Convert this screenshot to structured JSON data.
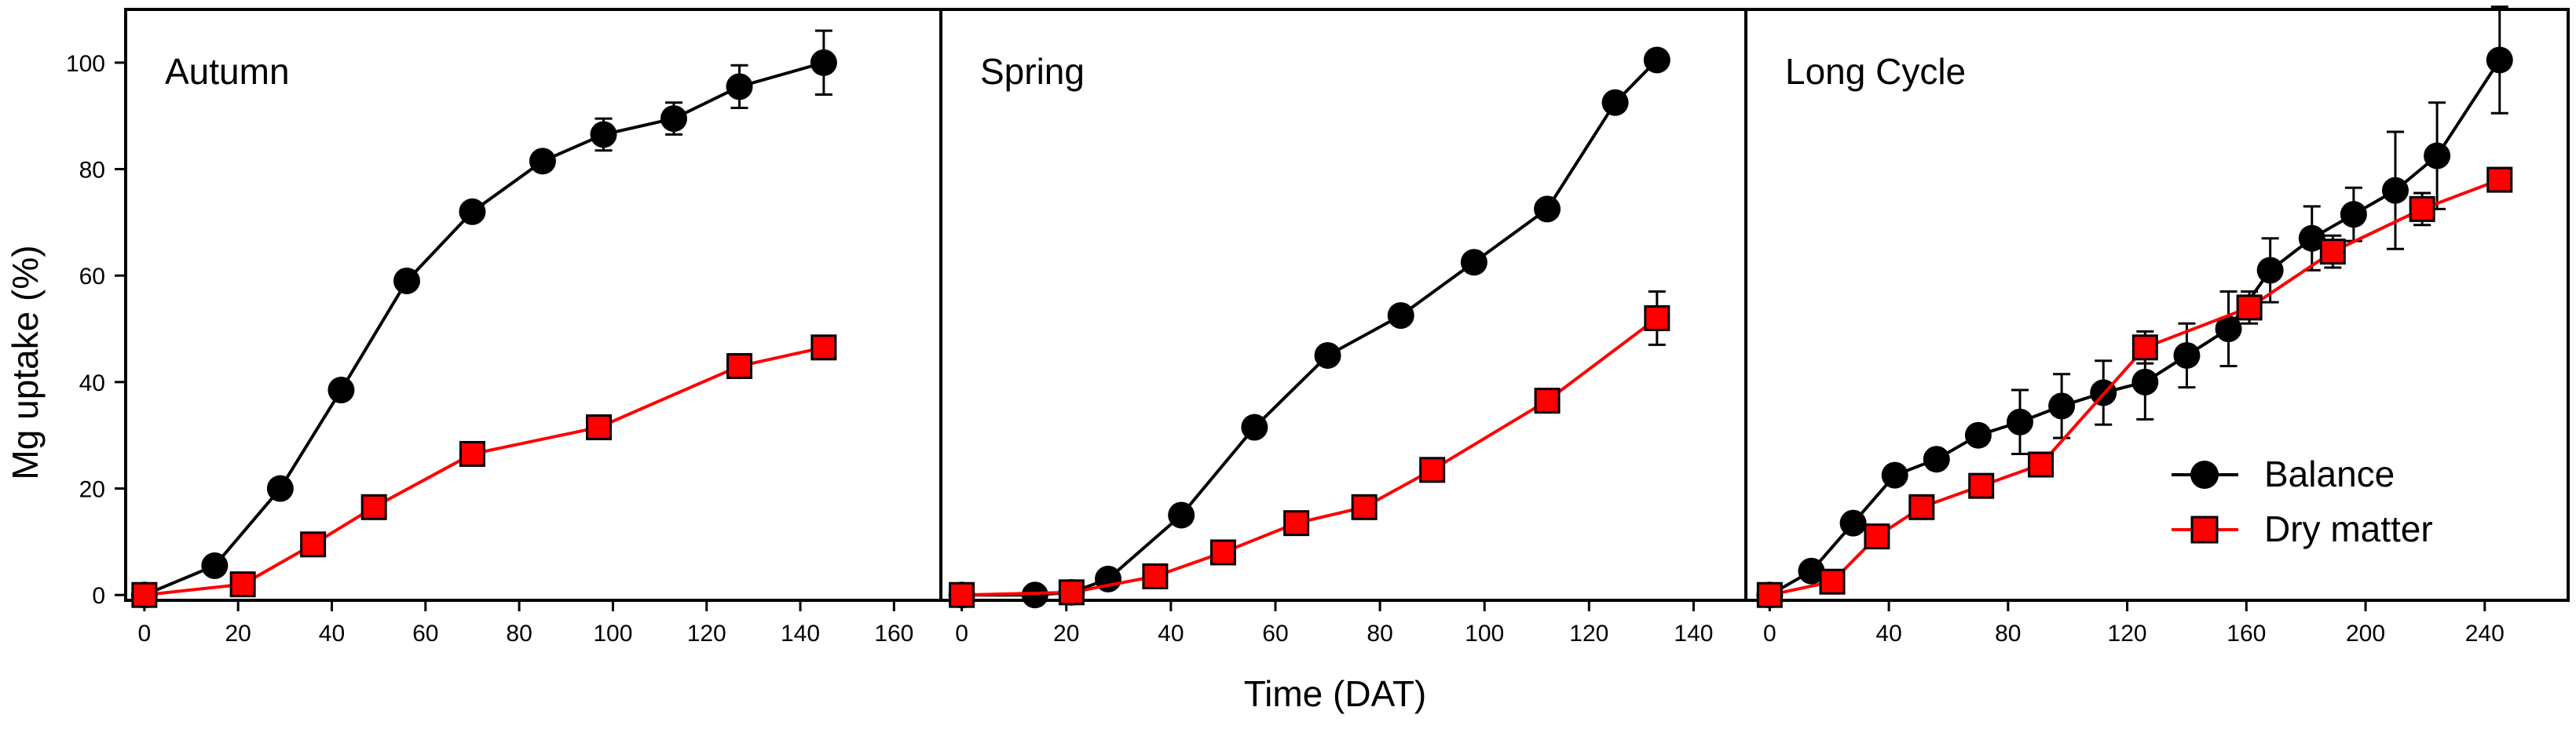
{
  "chart_data": {
    "type": "line",
    "ylabel": "Mg uptake (%)",
    "xlabel": "Time (DAT)",
    "yticks": [
      0,
      20,
      40,
      60,
      80,
      100
    ],
    "legend": {
      "placement": "bottom-right of third panel",
      "entries": [
        "Balance",
        "Dry matter"
      ]
    },
    "colors": {
      "balance_line": "#000000",
      "balance_marker": "#000000",
      "dry_line": "#ff0000",
      "dry_marker": "#ff0000"
    },
    "panels": [
      {
        "title": "Autumn",
        "xlim": [
          -4,
          170
        ],
        "ylim": [
          -1,
          110
        ],
        "xticks": [
          0,
          20,
          40,
          60,
          80,
          100,
          120,
          140,
          160
        ],
        "series": [
          {
            "name": "Balance",
            "x": [
              0,
              15,
              29,
              42,
              56,
              70,
              85,
              98,
              113,
              127,
              145
            ],
            "y": [
              0,
              5.5,
              20,
              38.5,
              59,
              72,
              81.5,
              86.5,
              89.5,
              95.5,
              100
            ],
            "err": [
              0,
              0,
              0,
              0,
              0,
              0,
              0,
              3,
              3,
              4,
              6
            ]
          },
          {
            "name": "Dry matter",
            "x": [
              0,
              21,
              36,
              49,
              70,
              97,
              127,
              145
            ],
            "y": [
              0,
              2,
              9.5,
              16.5,
              26.5,
              31.5,
              43,
              46.5
            ],
            "err": [
              0,
              0,
              0,
              0,
              0,
              0,
              0,
              0
            ]
          }
        ]
      },
      {
        "title": "Spring",
        "xlim": [
          -4,
          150
        ],
        "ylim": [
          -1,
          110
        ],
        "xticks": [
          0,
          20,
          40,
          60,
          80,
          100,
          120,
          140
        ],
        "series": [
          {
            "name": "Balance",
            "x": [
              0,
              14,
              21,
              28,
              42,
              56,
              70,
              84,
              98,
              112,
              125,
              133
            ],
            "y": [
              0,
              0,
              0.5,
              3,
              15,
              31.5,
              45,
              52.5,
              62.5,
              72.5,
              92.5,
              100.5
            ],
            "err": [
              0,
              0,
              0,
              0,
              0,
              0,
              0,
              0,
              0,
              0,
              0,
              0
            ]
          },
          {
            "name": "Dry matter",
            "x": [
              0,
              21,
              37,
              50,
              64,
              77,
              90,
              112,
              133
            ],
            "y": [
              0,
              0.5,
              3.5,
              8,
              13.5,
              16.5,
              23.5,
              36.5,
              52
            ],
            "err": [
              0,
              0,
              0,
              0,
              0,
              0,
              0,
              0,
              5
            ]
          }
        ]
      },
      {
        "title": "Long Cycle",
        "xlim": [
          -8,
          268
        ],
        "ylim": [
          -1,
          110
        ],
        "xticks": [
          0,
          40,
          80,
          120,
          160,
          200,
          240
        ],
        "series": [
          {
            "name": "Balance",
            "x": [
              0,
              14,
              28,
              42,
              56,
              70,
              84,
              98,
              112,
              126,
              140,
              154,
              168,
              182,
              196,
              210,
              224,
              245
            ],
            "y": [
              0,
              4.5,
              13.5,
              22.5,
              25.5,
              30,
              32.5,
              35.5,
              38,
              40,
              45,
              50,
              61,
              67,
              71.5,
              76,
              82.5,
              100.5
            ],
            "err": [
              0,
              0,
              0,
              0,
              0,
              0,
              6,
              6,
              6,
              7,
              6,
              7,
              6,
              6,
              5,
              11,
              10,
              10
            ]
          },
          {
            "name": "Dry matter",
            "x": [
              0,
              21,
              36,
              51,
              71,
              91,
              126,
              161,
              189,
              219,
              245
            ],
            "y": [
              0,
              2.5,
              11,
              16.5,
              20.5,
              24.5,
              46.5,
              54,
              64.5,
              72.5,
              78
            ],
            "err": [
              0,
              0,
              0,
              0,
              0,
              0,
              3,
              3,
              3,
              3,
              2
            ]
          }
        ]
      }
    ]
  }
}
